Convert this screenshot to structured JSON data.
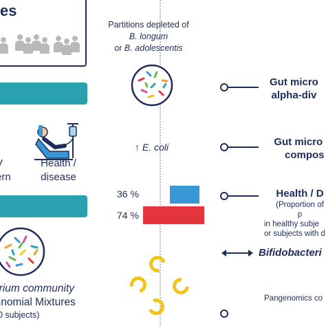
{
  "left_panel": {
    "box_heading": "es",
    "teal_bar_top_label": "",
    "teal_bar_bottom_label": "",
    "col1_label_line1": "V",
    "col1_label_line2": "ern",
    "col2_label_line1": "Health /",
    "col2_label_line2": "disease",
    "community_line1": "erium community",
    "community_line2": "ltinomial Mixtures",
    "community_line3": "00 subjects)"
  },
  "middle_panel": {
    "partitions_line1": "Partitions depleted of",
    "partitions_species1": "B. longum",
    "partitions_line2_prefix": "or ",
    "partitions_species2": "B. adolescentis",
    "ecoli_arrow": "↑",
    "ecoli_label": "E. coli",
    "bar1_percent": "36 %",
    "bar2_percent": "74 %",
    "bar1_color": "#3a97d6",
    "bar2_color": "#e4343d",
    "bar1_value": 36,
    "bar2_value": 74
  },
  "right_panel": {
    "item1_line1": "Gut micro",
    "item1_line2": "alpha-div",
    "item2_line1": "Gut micro",
    "item2_line2": "compos",
    "item3_title": "Health / D",
    "item3_sub1": "(Proportion of p",
    "item3_sub2": "in healthy subje",
    "item3_sub3": "or subjects with d",
    "item4_title": "Bifidobacteri",
    "item4_sub": "Pangenomics co"
  },
  "icons": {
    "people": "people-group-icon",
    "patient": "hospital-patient-icon",
    "petri1": "bacteria-petri-dish-icon",
    "petri2": "bacteria-community-icon",
    "rings": "circular-genome-icon"
  }
}
